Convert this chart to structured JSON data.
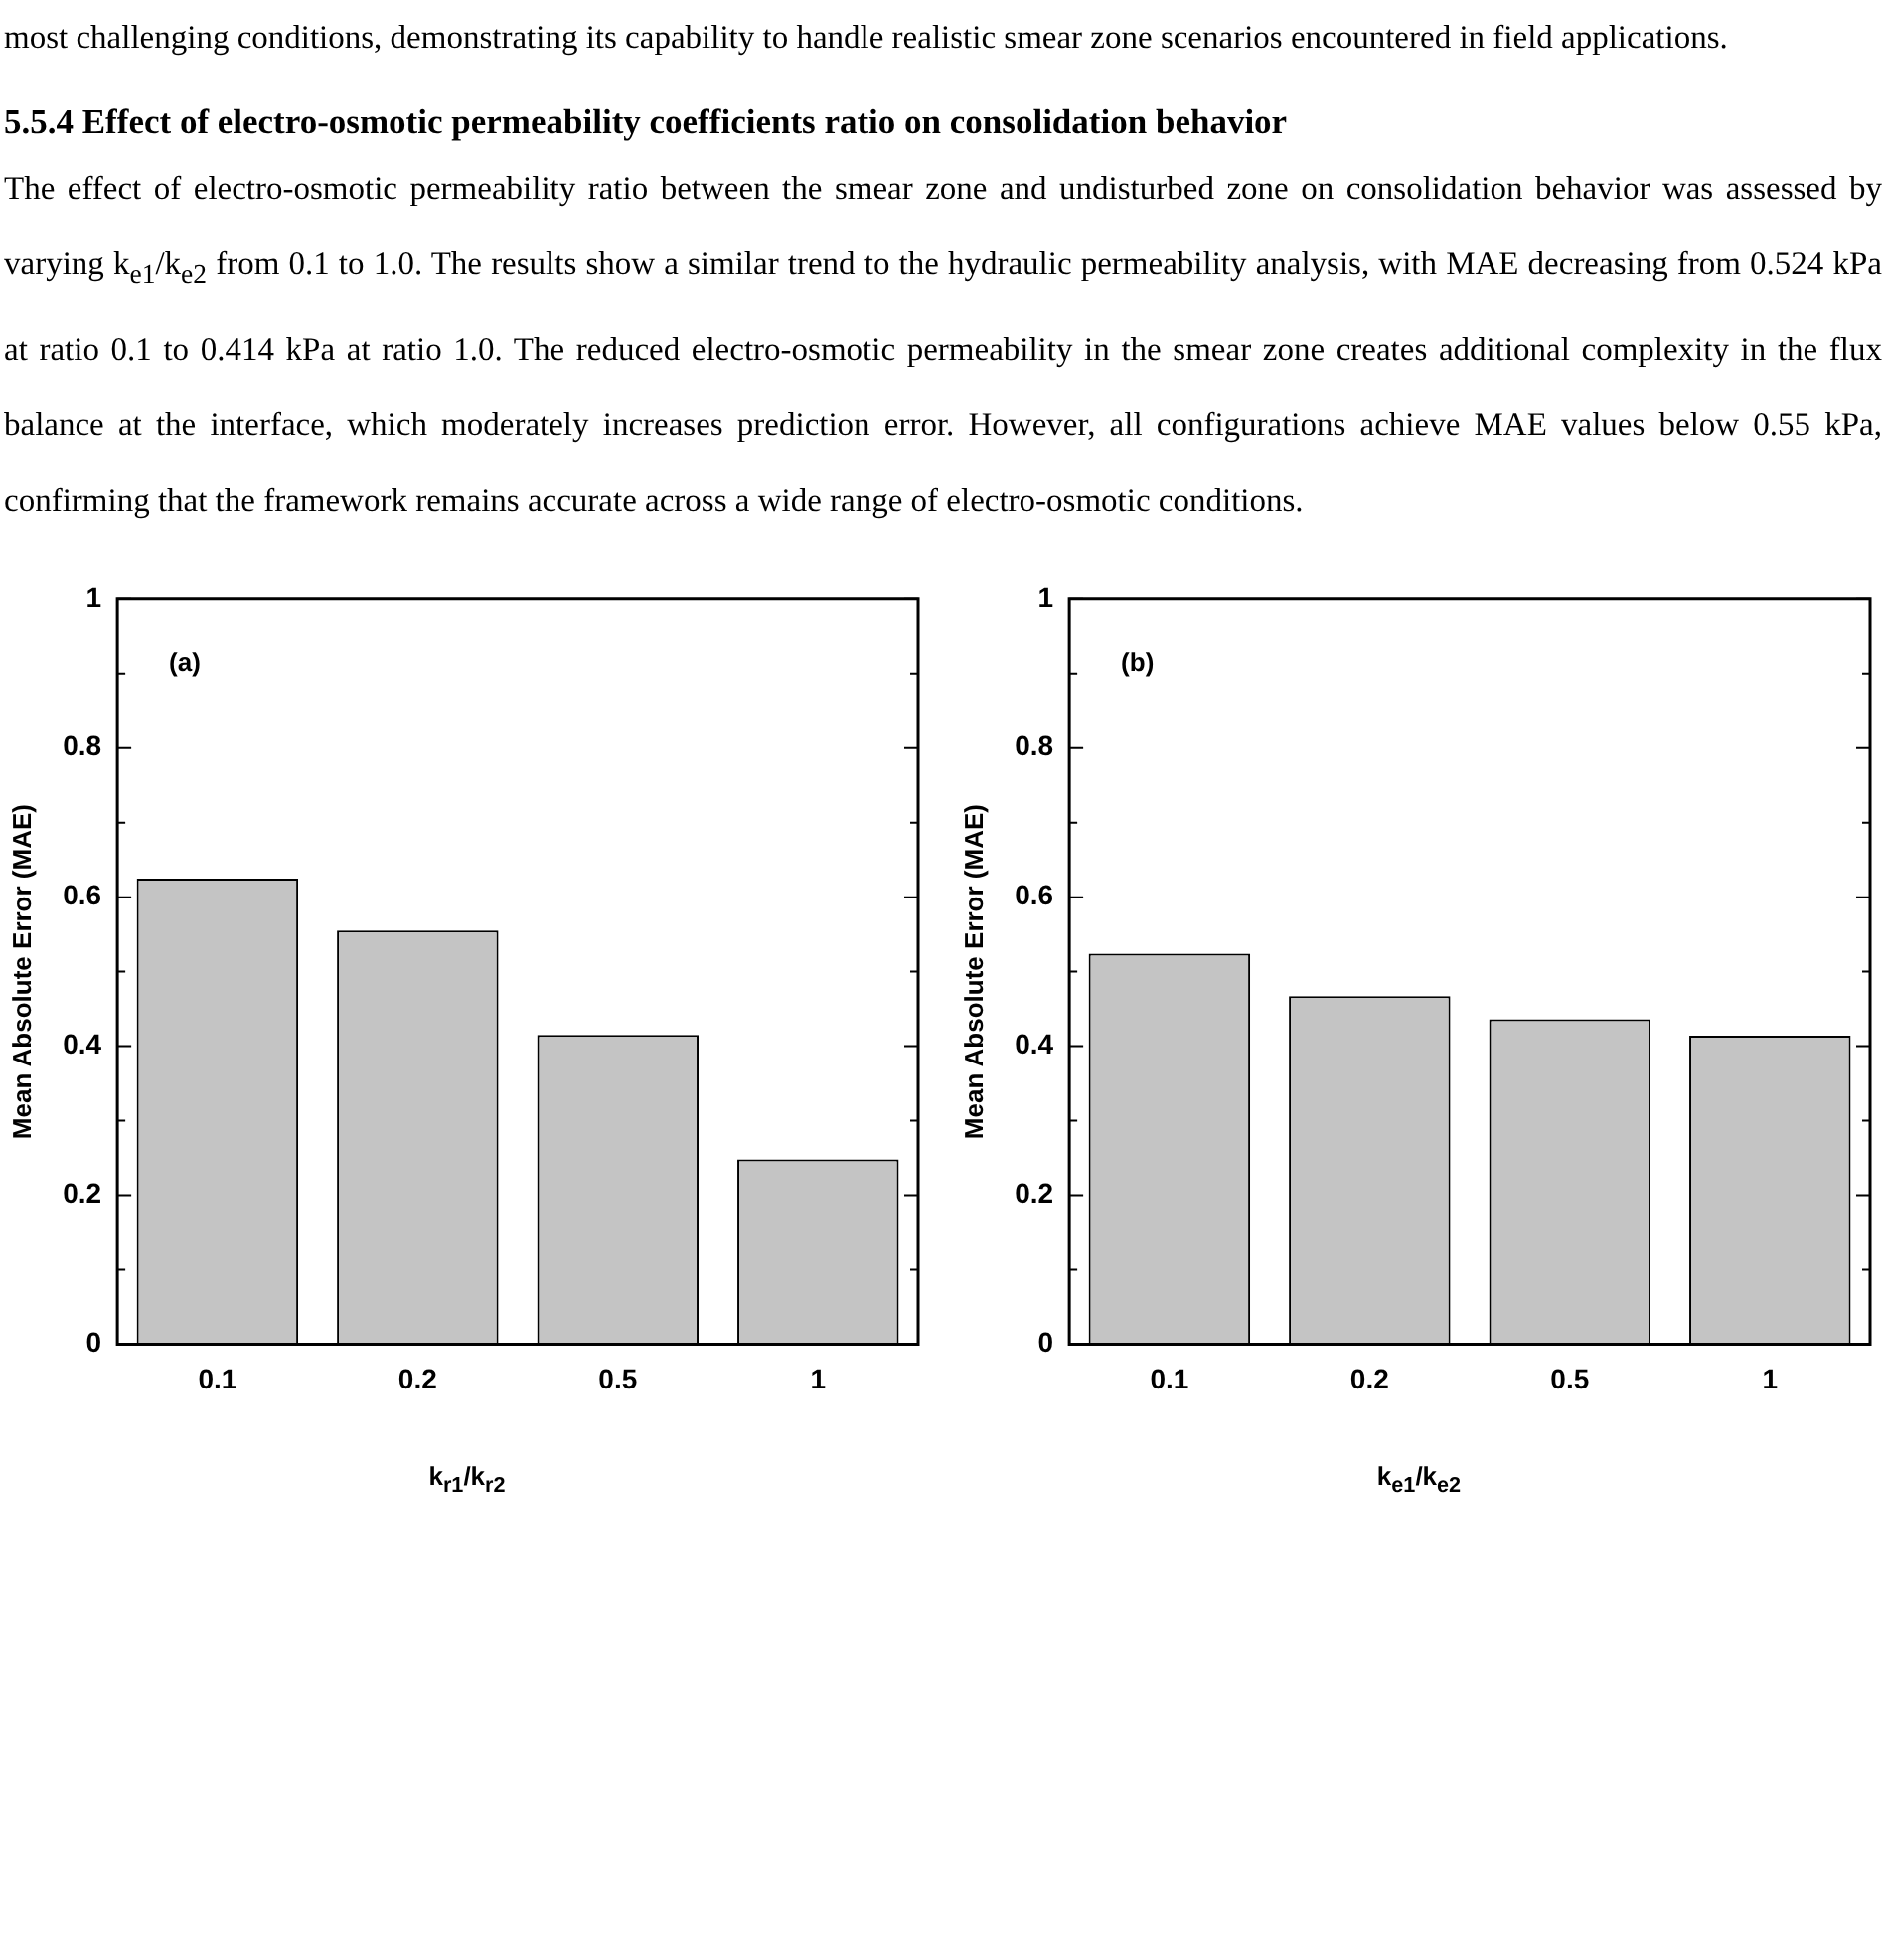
{
  "chart_data": [
    {
      "type": "bar",
      "title": "(a)",
      "ylabel": "Mean Absolute Error (MAE)",
      "xlabel": "k$_{r1}$/k$_{r2}$",
      "categories": [
        "0.1",
        "0.2",
        "0.5",
        "1"
      ],
      "values": [
        0.625,
        0.555,
        0.415,
        0.248
      ],
      "color": "#c4c4c4",
      "ylim": [
        0,
        1
      ],
      "yticks": [
        0,
        {
          "value": 0.1,
          "label": null
        },
        0.2,
        {
          "value": 0.3,
          "label": null
        },
        0.4,
        {
          "value": 0.5,
          "label": null
        },
        0.6,
        {
          "value": 0.7,
          "label": null
        },
        0.8,
        {
          "value": 0.9,
          "label": null
        },
        1
      ],
      "annotations": [
        "most challenging conditions, demonstrating its capability to handle realistic smear zone scenarios encountered in field applications.",
        "5.5.4 Effect of electro-osmotic permeability coefficients ratio on consolidation behavior",
        "The effect of electro-osmotic permeability ratio between the smear zone and undisturbed zone on consolidation behavior was assessed by varying k$_{e1}$/k$_{e2}$ from 0.1 to 1.0. The results show a similar trend to the hydraulic permeability analysis, with MAE decreasing from 0.524 kPa at ratio 0.1 to 0.414 kPa at ratio 1.0. The reduced electro-osmotic permeability in the smear zone creates additional complexity in the flux balance at the interface, which moderately increases prediction error. However, all configurations achieve MAE values below 0.55 kPa, confirming that the framework remains accurate across a wide range of electro-osmotic conditions."
      ]
    },
    {
      "type": "bar",
      "title": "(b)",
      "ylabel": "Mean Absolute Error (MAE)",
      "xlabel": "k$_{e1}$/k$_{e2}$",
      "categories": [
        "0.1",
        "0.2",
        "0.5",
        "1"
      ],
      "values": [
        0.524,
        0.467,
        0.436,
        0.414
      ],
      "color": "#c4c4c4",
      "ylim": [
        0,
        1
      ],
      "yticks": [
        0,
        {
          "value": 0.1,
          "label": null
        },
        0.2,
        {
          "value": 0.3,
          "label": null
        },
        0.4,
        {
          "value": 0.5,
          "label": null
        },
        0.6,
        {
          "value": 0.7,
          "label": null
        },
        0.8,
        {
          "value": 0.9,
          "label": null
        },
        1
      ]
    }
  ]
}
